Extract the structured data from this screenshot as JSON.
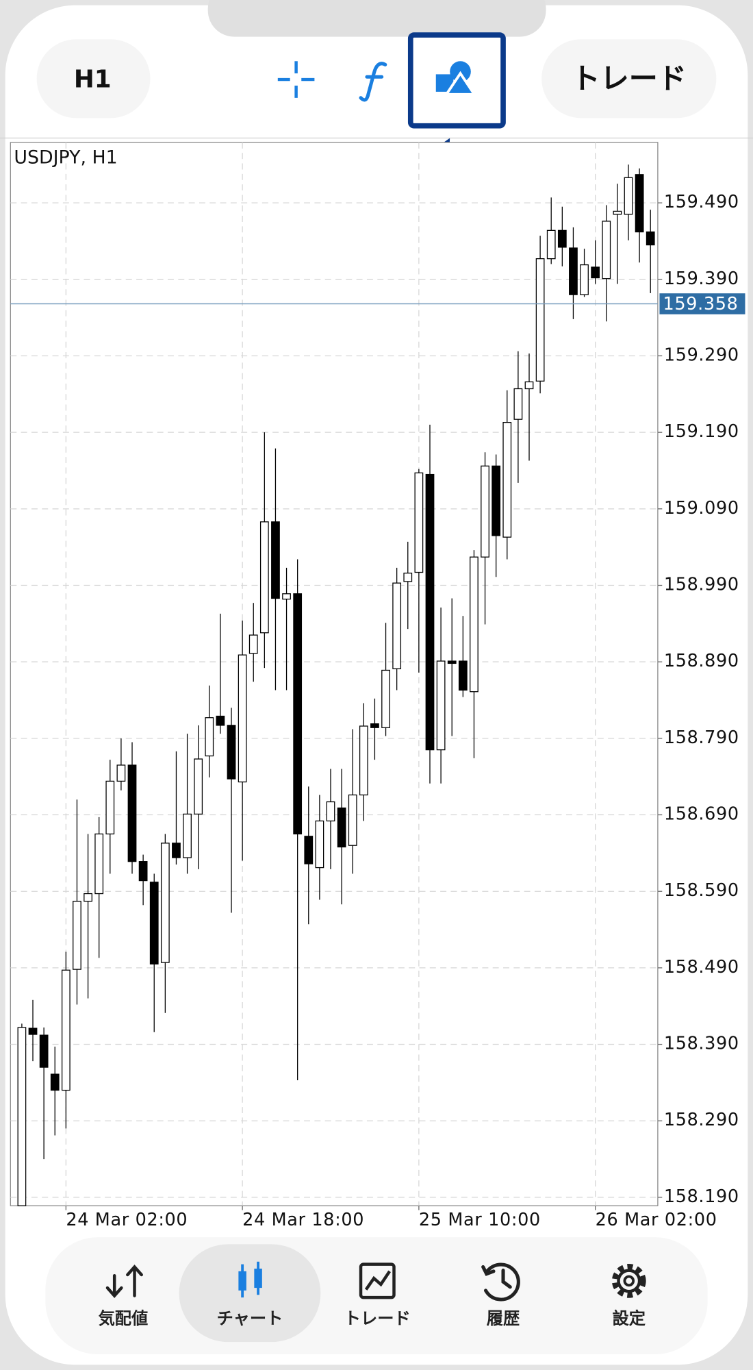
{
  "top_bar": {
    "timeframe": "H1",
    "trade": "トレード"
  },
  "bottom_nav": {
    "items": [
      "気配値",
      "チャート",
      "トレード",
      "履歴",
      "設定"
    ],
    "active": 1
  },
  "chart_data": {
    "type": "candlestick",
    "title": "USDJPY, H1",
    "categories": [
      null,
      null,
      null,
      null,
      "24 Mar 02:00",
      null,
      null,
      null,
      null,
      null,
      null,
      null,
      null,
      null,
      null,
      null,
      null,
      null,
      null,
      null,
      "24 Mar 18:00",
      null,
      null,
      null,
      null,
      null,
      null,
      null,
      null,
      null,
      null,
      null,
      null,
      null,
      null,
      null,
      "25 Mar 10:00",
      null,
      null,
      null,
      null,
      null,
      null,
      null,
      null,
      null,
      null,
      null,
      null,
      null,
      null,
      null,
      "26 Mar 02:00",
      null,
      null,
      null,
      null,
      null
    ],
    "open": [
      158.179,
      158.411,
      158.402,
      158.351,
      158.33,
      158.488,
      158.577,
      158.587,
      158.665,
      158.734,
      158.755,
      158.629,
      158.602,
      158.497,
      158.653,
      158.634,
      158.691,
      158.767,
      158.819,
      158.807,
      158.733,
      158.901,
      158.928,
      159.073,
      158.972,
      158.979,
      158.662,
      158.621,
      158.682,
      158.699,
      158.65,
      158.716,
      158.809,
      158.804,
      158.881,
      158.995,
      159.007,
      159.135,
      158.775,
      158.891,
      158.891,
      158.851,
      159.027,
      159.146,
      159.053,
      159.207,
      159.247,
      159.257,
      159.417,
      159.454,
      159.431,
      159.37,
      159.406,
      159.391,
      159.475,
      159.475,
      159.527,
      159.452
    ],
    "high": [
      158.417,
      158.448,
      158.412,
      158.387,
      158.511,
      158.71,
      158.665,
      158.687,
      158.762,
      158.79,
      158.785,
      158.638,
      158.613,
      158.665,
      158.773,
      158.796,
      158.807,
      158.859,
      158.953,
      158.83,
      158.944,
      158.967,
      159.19,
      159.169,
      159.013,
      159.024,
      158.727,
      158.716,
      158.75,
      158.75,
      158.802,
      158.836,
      158.842,
      158.941,
      159.013,
      159.047,
      159.142,
      159.2,
      158.961,
      158.973,
      158.95,
      159.036,
      159.164,
      159.161,
      159.245,
      159.296,
      159.293,
      159.447,
      159.497,
      159.485,
      159.458,
      159.43,
      159.441,
      159.487,
      159.515,
      159.54,
      159.535,
      159.481
    ],
    "low": [
      158.179,
      158.368,
      158.24,
      158.271,
      158.28,
      158.442,
      158.45,
      158.503,
      158.613,
      158.722,
      158.613,
      158.572,
      158.406,
      158.431,
      158.625,
      158.613,
      158.619,
      158.739,
      158.796,
      158.562,
      158.63,
      158.864,
      158.882,
      158.853,
      158.853,
      158.343,
      158.547,
      158.579,
      158.619,
      158.573,
      158.613,
      158.682,
      158.762,
      158.793,
      158.853,
      158.933,
      158.876,
      158.731,
      158.731,
      158.793,
      158.844,
      158.764,
      158.939,
      159.001,
      159.024,
      159.124,
      159.153,
      159.241,
      159.41,
      159.407,
      159.338,
      159.367,
      159.384,
      159.335,
      159.384,
      159.441,
      159.412,
      159.372
    ],
    "close": [
      158.412,
      158.403,
      158.36,
      158.33,
      158.487,
      158.577,
      158.587,
      158.665,
      158.734,
      158.755,
      158.629,
      158.604,
      158.495,
      158.653,
      158.634,
      158.691,
      158.763,
      158.817,
      158.807,
      158.737,
      158.899,
      158.925,
      159.073,
      158.973,
      158.979,
      158.665,
      158.626,
      158.682,
      158.707,
      158.648,
      158.716,
      158.806,
      158.804,
      158.879,
      158.993,
      159.006,
      159.137,
      158.775,
      158.891,
      158.888,
      158.853,
      159.027,
      159.146,
      159.055,
      159.203,
      159.247,
      159.256,
      159.417,
      159.454,
      159.432,
      159.37,
      159.409,
      159.392,
      159.466,
      159.479,
      159.523,
      159.452,
      159.435
    ],
    "up_color": "#ffffff",
    "down_color": "#000000",
    "current_price": 159.358,
    "current_price_color": "#2e6da4",
    "ylim": [
      158.179,
      159.569
    ],
    "yticks": [
      {
        "value": 158.19,
        "label": "158.190"
      },
      {
        "value": 158.29,
        "label": "158.290"
      },
      {
        "value": 158.39,
        "label": "158.390"
      },
      {
        "value": 158.49,
        "label": "158.490"
      },
      {
        "value": 158.59,
        "label": "158.590"
      },
      {
        "value": 158.69,
        "label": "158.690"
      },
      {
        "value": 158.79,
        "label": "158.790"
      },
      {
        "value": 158.89,
        "label": "158.890"
      },
      {
        "value": 158.99,
        "label": "158.990"
      },
      {
        "value": 159.09,
        "label": "159.090"
      },
      {
        "value": 159.19,
        "label": "159.190"
      },
      {
        "value": 159.29,
        "label": "159.290"
      },
      {
        "value": 159.39,
        "label": "159.390"
      },
      {
        "value": 159.49,
        "label": "159.490"
      }
    ],
    "grid": true
  }
}
